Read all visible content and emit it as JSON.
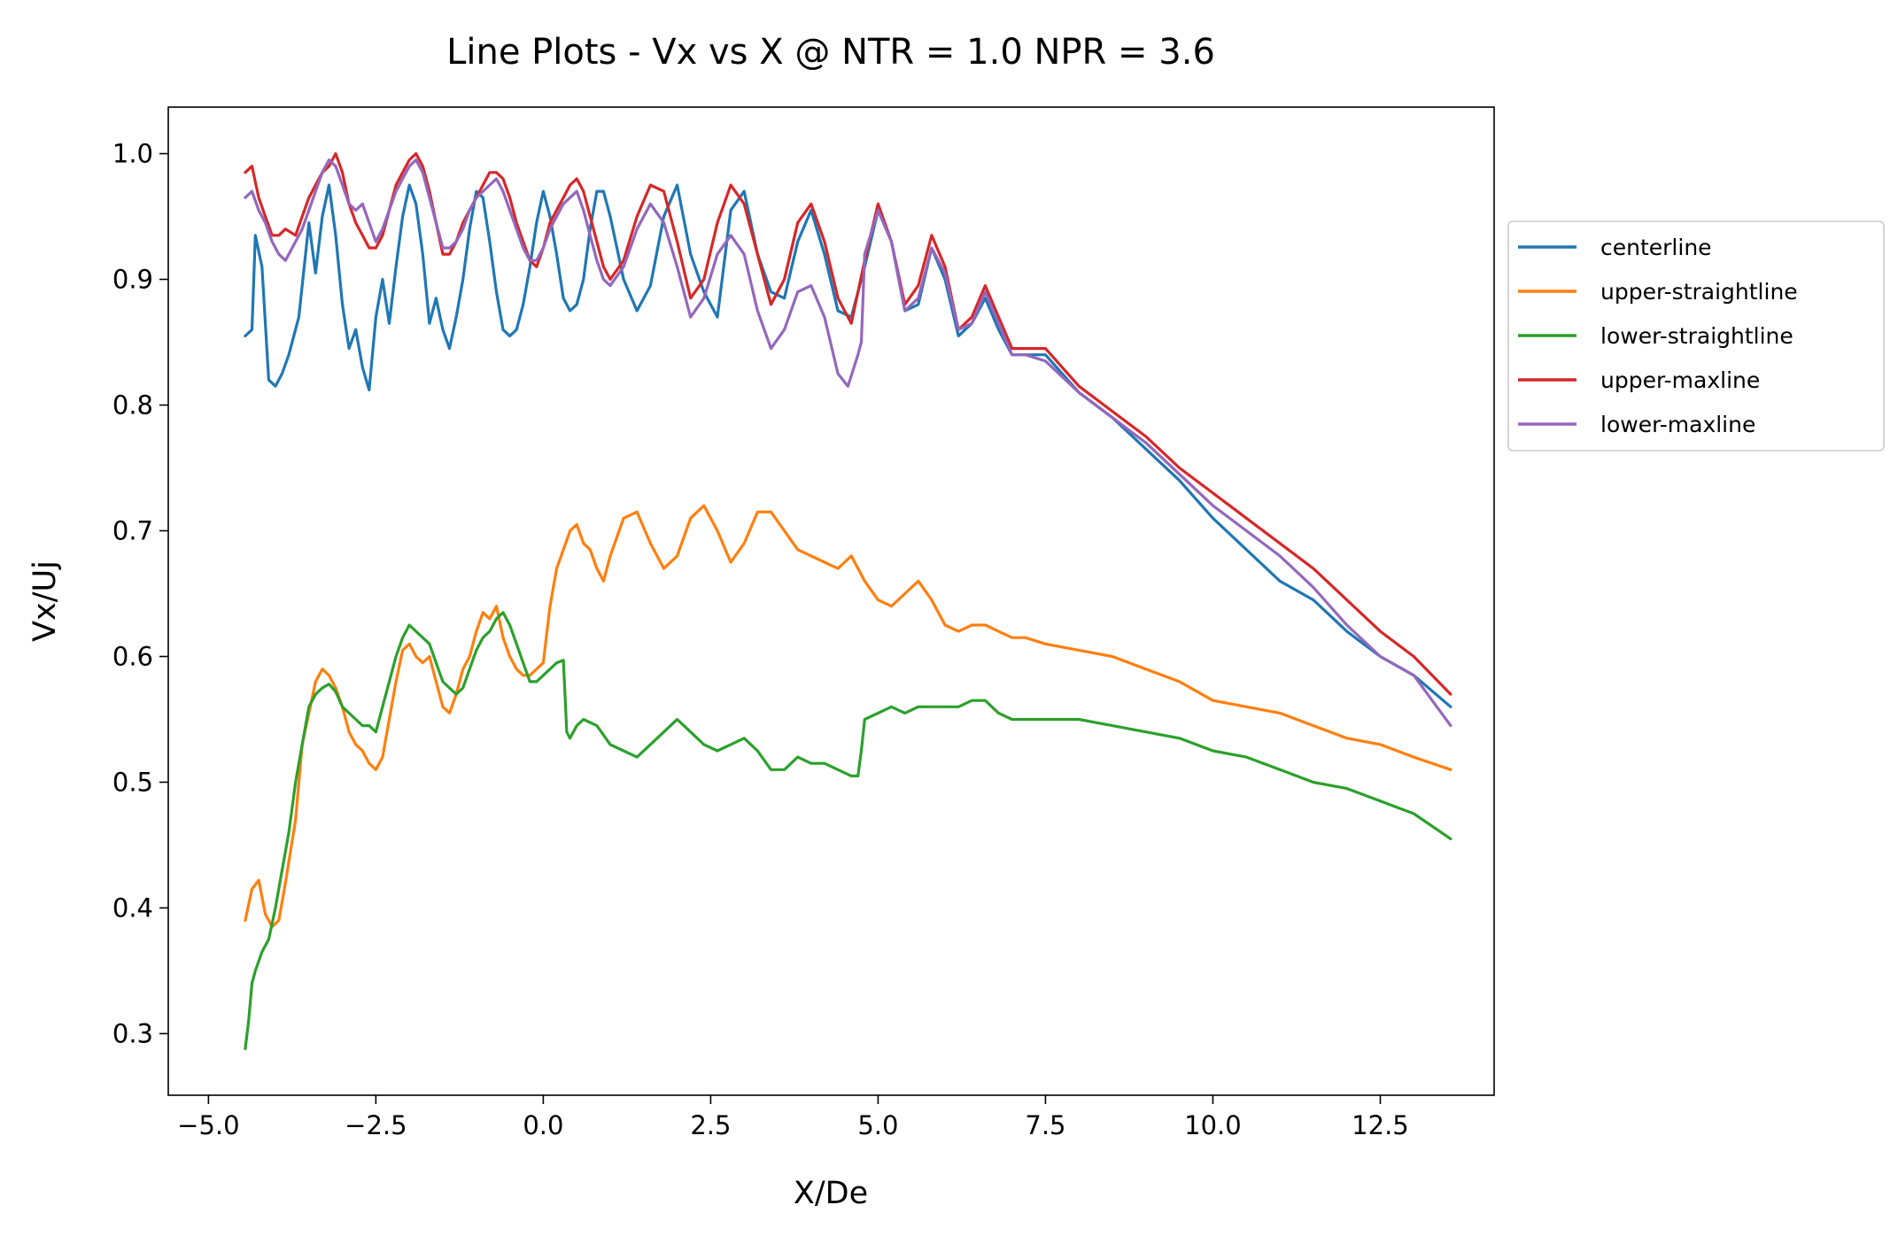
{
  "chart_data": {
    "type": "line",
    "title": "Line Plots - Vx vs X @ NTR = 1.0 NPR = 3.6",
    "xlabel": "X/De",
    "ylabel": "Vx/Uj",
    "xlim": [
      -5.6,
      14.2
    ],
    "ylim": [
      0.251,
      1.037
    ],
    "x_ticks": [
      -5.0,
      -2.5,
      0.0,
      2.5,
      5.0,
      7.5,
      10.0,
      12.5
    ],
    "x_tick_labels": [
      "−5.0",
      "−2.5",
      "0.0",
      "2.5",
      "5.0",
      "7.5",
      "10.0",
      "12.5"
    ],
    "y_ticks": [
      0.3,
      0.4,
      0.5,
      0.6,
      0.7,
      0.8,
      0.9,
      1.0
    ],
    "y_tick_labels": [
      "0.3",
      "0.4",
      "0.5",
      "0.6",
      "0.7",
      "0.8",
      "0.9",
      "1.0"
    ],
    "grid": false,
    "legend_position": "outside-right",
    "series": [
      {
        "name": "centerline",
        "color": "#1f77b4",
        "x": [
          -4.45,
          -4.35,
          -4.3,
          -4.2,
          -4.1,
          -4.0,
          -3.9,
          -3.8,
          -3.65,
          -3.5,
          -3.4,
          -3.3,
          -3.2,
          -3.1,
          -3.0,
          -2.9,
          -2.8,
          -2.7,
          -2.6,
          -2.5,
          -2.4,
          -2.3,
          -2.2,
          -2.1,
          -2.0,
          -1.9,
          -1.8,
          -1.7,
          -1.6,
          -1.5,
          -1.4,
          -1.3,
          -1.2,
          -1.1,
          -1.0,
          -0.9,
          -0.8,
          -0.7,
          -0.6,
          -0.5,
          -0.4,
          -0.3,
          -0.2,
          -0.1,
          0.0,
          0.1,
          0.2,
          0.3,
          0.4,
          0.5,
          0.6,
          0.7,
          0.8,
          0.9,
          1.0,
          1.2,
          1.4,
          1.6,
          1.8,
          2.0,
          2.2,
          2.4,
          2.6,
          2.8,
          3.0,
          3.2,
          3.4,
          3.6,
          3.8,
          4.0,
          4.2,
          4.4,
          4.6,
          4.8,
          5.0,
          5.2,
          5.4,
          5.6,
          5.8,
          6.0,
          6.2,
          6.4,
          6.6,
          6.8,
          7.0,
          7.2,
          7.5,
          8.0,
          8.5,
          9.0,
          9.5,
          10.0,
          10.5,
          11.0,
          11.5,
          12.0,
          12.5,
          13.0,
          13.55
        ],
        "y": [
          0.855,
          0.86,
          0.935,
          0.91,
          0.82,
          0.815,
          0.825,
          0.84,
          0.87,
          0.945,
          0.905,
          0.95,
          0.975,
          0.935,
          0.88,
          0.845,
          0.86,
          0.83,
          0.812,
          0.87,
          0.9,
          0.865,
          0.91,
          0.95,
          0.975,
          0.96,
          0.92,
          0.865,
          0.885,
          0.86,
          0.845,
          0.87,
          0.9,
          0.94,
          0.97,
          0.965,
          0.93,
          0.89,
          0.86,
          0.855,
          0.86,
          0.88,
          0.91,
          0.945,
          0.97,
          0.95,
          0.92,
          0.885,
          0.875,
          0.88,
          0.9,
          0.94,
          0.97,
          0.97,
          0.95,
          0.9,
          0.875,
          0.895,
          0.95,
          0.975,
          0.92,
          0.89,
          0.87,
          0.955,
          0.97,
          0.92,
          0.89,
          0.885,
          0.93,
          0.955,
          0.92,
          0.875,
          0.87,
          0.91,
          0.955,
          0.93,
          0.875,
          0.88,
          0.925,
          0.9,
          0.855,
          0.865,
          0.885,
          0.86,
          0.84,
          0.84,
          0.84,
          0.81,
          0.79,
          0.765,
          0.74,
          0.71,
          0.685,
          0.66,
          0.645,
          0.62,
          0.6,
          0.585,
          0.56
        ]
      },
      {
        "name": "upper-straightline",
        "color": "#ff7f0e",
        "x": [
          -4.45,
          -4.35,
          -4.25,
          -4.15,
          -4.05,
          -3.95,
          -3.85,
          -3.7,
          -3.6,
          -3.5,
          -3.4,
          -3.3,
          -3.2,
          -3.1,
          -3.0,
          -2.9,
          -2.8,
          -2.7,
          -2.6,
          -2.5,
          -2.4,
          -2.3,
          -2.2,
          -2.1,
          -2.0,
          -1.9,
          -1.8,
          -1.7,
          -1.6,
          -1.5,
          -1.4,
          -1.3,
          -1.2,
          -1.1,
          -1.0,
          -0.9,
          -0.8,
          -0.7,
          -0.6,
          -0.5,
          -0.4,
          -0.3,
          -0.2,
          -0.1,
          0.0,
          0.1,
          0.2,
          0.3,
          0.4,
          0.5,
          0.6,
          0.7,
          0.8,
          0.9,
          1.0,
          1.2,
          1.4,
          1.6,
          1.8,
          2.0,
          2.2,
          2.4,
          2.6,
          2.8,
          3.0,
          3.2,
          3.4,
          3.6,
          3.8,
          4.0,
          4.2,
          4.4,
          4.6,
          4.8,
          5.0,
          5.2,
          5.4,
          5.6,
          5.8,
          6.0,
          6.2,
          6.4,
          6.6,
          6.8,
          7.0,
          7.2,
          7.5,
          8.0,
          8.5,
          9.0,
          9.5,
          10.0,
          10.5,
          11.0,
          11.5,
          12.0,
          12.5,
          13.0,
          13.55
        ],
        "y": [
          0.39,
          0.415,
          0.422,
          0.395,
          0.385,
          0.39,
          0.42,
          0.47,
          0.53,
          0.555,
          0.58,
          0.59,
          0.585,
          0.575,
          0.56,
          0.54,
          0.53,
          0.525,
          0.515,
          0.51,
          0.52,
          0.55,
          0.58,
          0.605,
          0.61,
          0.6,
          0.595,
          0.6,
          0.58,
          0.56,
          0.555,
          0.57,
          0.59,
          0.6,
          0.62,
          0.635,
          0.63,
          0.64,
          0.615,
          0.6,
          0.59,
          0.585,
          0.585,
          0.59,
          0.595,
          0.64,
          0.67,
          0.685,
          0.7,
          0.705,
          0.69,
          0.685,
          0.67,
          0.66,
          0.68,
          0.71,
          0.715,
          0.69,
          0.67,
          0.68,
          0.71,
          0.72,
          0.7,
          0.675,
          0.69,
          0.715,
          0.715,
          0.7,
          0.685,
          0.68,
          0.675,
          0.67,
          0.68,
          0.66,
          0.645,
          0.64,
          0.65,
          0.66,
          0.645,
          0.625,
          0.62,
          0.625,
          0.625,
          0.62,
          0.615,
          0.615,
          0.61,
          0.605,
          0.6,
          0.59,
          0.58,
          0.565,
          0.56,
          0.555,
          0.545,
          0.535,
          0.53,
          0.52,
          0.51
        ]
      },
      {
        "name": "lower-straightline",
        "color": "#2ca02c",
        "x": [
          -4.45,
          -4.4,
          -4.35,
          -4.3,
          -4.2,
          -4.1,
          -4.0,
          -3.9,
          -3.8,
          -3.7,
          -3.6,
          -3.5,
          -3.4,
          -3.3,
          -3.2,
          -3.1,
          -3.0,
          -2.9,
          -2.8,
          -2.7,
          -2.6,
          -2.5,
          -2.4,
          -2.3,
          -2.2,
          -2.1,
          -2.0,
          -1.9,
          -1.8,
          -1.7,
          -1.6,
          -1.5,
          -1.4,
          -1.3,
          -1.2,
          -1.1,
          -1.0,
          -0.9,
          -0.8,
          -0.7,
          -0.6,
          -0.5,
          -0.4,
          -0.3,
          -0.2,
          -0.1,
          0.0,
          0.1,
          0.2,
          0.3,
          0.35,
          0.4,
          0.5,
          0.6,
          0.8,
          1.0,
          1.2,
          1.4,
          1.6,
          1.8,
          2.0,
          2.2,
          2.4,
          2.6,
          2.8,
          3.0,
          3.2,
          3.4,
          3.6,
          3.8,
          4.0,
          4.2,
          4.4,
          4.6,
          4.7,
          4.75,
          4.8,
          5.0,
          5.2,
          5.4,
          5.6,
          5.8,
          6.0,
          6.2,
          6.4,
          6.6,
          6.8,
          7.0,
          7.2,
          7.5,
          8.0,
          8.5,
          9.0,
          9.5,
          10.0,
          10.5,
          11.0,
          11.5,
          12.0,
          12.5,
          13.0,
          13.55
        ],
        "y": [
          0.288,
          0.31,
          0.34,
          0.35,
          0.365,
          0.375,
          0.4,
          0.43,
          0.46,
          0.5,
          0.53,
          0.56,
          0.57,
          0.575,
          0.578,
          0.572,
          0.56,
          0.555,
          0.55,
          0.545,
          0.545,
          0.54,
          0.56,
          0.58,
          0.6,
          0.615,
          0.625,
          0.62,
          0.615,
          0.61,
          0.595,
          0.58,
          0.575,
          0.57,
          0.575,
          0.59,
          0.605,
          0.615,
          0.62,
          0.63,
          0.635,
          0.625,
          0.61,
          0.595,
          0.58,
          0.58,
          0.585,
          0.59,
          0.595,
          0.597,
          0.54,
          0.535,
          0.545,
          0.55,
          0.545,
          0.53,
          0.525,
          0.52,
          0.53,
          0.54,
          0.55,
          0.54,
          0.53,
          0.525,
          0.53,
          0.535,
          0.525,
          0.51,
          0.51,
          0.52,
          0.515,
          0.515,
          0.51,
          0.505,
          0.505,
          0.525,
          0.55,
          0.555,
          0.56,
          0.555,
          0.56,
          0.56,
          0.56,
          0.56,
          0.565,
          0.565,
          0.555,
          0.55,
          0.55,
          0.55,
          0.55,
          0.545,
          0.54,
          0.535,
          0.525,
          0.52,
          0.51,
          0.5,
          0.495,
          0.485,
          0.475,
          0.455
        ]
      },
      {
        "name": "upper-maxline",
        "color": "#d62728",
        "x": [
          -4.45,
          -4.35,
          -4.25,
          -4.15,
          -4.05,
          -3.95,
          -3.85,
          -3.7,
          -3.6,
          -3.5,
          -3.4,
          -3.3,
          -3.2,
          -3.1,
          -3.0,
          -2.9,
          -2.8,
          -2.7,
          -2.6,
          -2.5,
          -2.4,
          -2.3,
          -2.2,
          -2.1,
          -2.0,
          -1.9,
          -1.8,
          -1.7,
          -1.6,
          -1.5,
          -1.4,
          -1.3,
          -1.2,
          -1.1,
          -1.0,
          -0.9,
          -0.8,
          -0.7,
          -0.6,
          -0.5,
          -0.4,
          -0.3,
          -0.2,
          -0.1,
          0.0,
          0.1,
          0.2,
          0.3,
          0.4,
          0.5,
          0.6,
          0.7,
          0.8,
          0.9,
          1.0,
          1.2,
          1.4,
          1.6,
          1.8,
          2.0,
          2.2,
          2.4,
          2.6,
          2.8,
          3.0,
          3.2,
          3.4,
          3.6,
          3.8,
          4.0,
          4.2,
          4.4,
          4.6,
          4.8,
          5.0,
          5.2,
          5.4,
          5.6,
          5.8,
          6.0,
          6.2,
          6.4,
          6.6,
          6.8,
          7.0,
          7.2,
          7.5,
          8.0,
          8.5,
          9.0,
          9.5,
          10.0,
          10.5,
          11.0,
          11.5,
          12.0,
          12.5,
          13.0,
          13.55
        ],
        "y": [
          0.985,
          0.99,
          0.965,
          0.95,
          0.935,
          0.935,
          0.94,
          0.935,
          0.95,
          0.965,
          0.975,
          0.985,
          0.99,
          1.0,
          0.985,
          0.96,
          0.945,
          0.935,
          0.925,
          0.925,
          0.935,
          0.955,
          0.975,
          0.985,
          0.995,
          1.0,
          0.99,
          0.97,
          0.945,
          0.92,
          0.92,
          0.93,
          0.945,
          0.955,
          0.965,
          0.975,
          0.985,
          0.985,
          0.98,
          0.965,
          0.945,
          0.93,
          0.915,
          0.91,
          0.925,
          0.945,
          0.955,
          0.965,
          0.975,
          0.98,
          0.97,
          0.95,
          0.93,
          0.91,
          0.9,
          0.915,
          0.95,
          0.975,
          0.97,
          0.93,
          0.885,
          0.9,
          0.945,
          0.975,
          0.96,
          0.92,
          0.88,
          0.9,
          0.945,
          0.96,
          0.93,
          0.885,
          0.865,
          0.915,
          0.96,
          0.93,
          0.88,
          0.895,
          0.935,
          0.91,
          0.86,
          0.87,
          0.895,
          0.87,
          0.845,
          0.845,
          0.845,
          0.815,
          0.795,
          0.775,
          0.75,
          0.73,
          0.71,
          0.69,
          0.67,
          0.645,
          0.62,
          0.6,
          0.57
        ]
      },
      {
        "name": "lower-maxline",
        "color": "#9467bd",
        "x": [
          -4.45,
          -4.35,
          -4.25,
          -4.15,
          -4.05,
          -3.95,
          -3.85,
          -3.7,
          -3.6,
          -3.5,
          -3.4,
          -3.3,
          -3.2,
          -3.1,
          -3.0,
          -2.9,
          -2.8,
          -2.7,
          -2.6,
          -2.5,
          -2.4,
          -2.3,
          -2.2,
          -2.1,
          -2.0,
          -1.9,
          -1.8,
          -1.7,
          -1.6,
          -1.5,
          -1.4,
          -1.3,
          -1.2,
          -1.1,
          -1.0,
          -0.9,
          -0.8,
          -0.7,
          -0.6,
          -0.5,
          -0.4,
          -0.3,
          -0.2,
          -0.1,
          0.0,
          0.1,
          0.2,
          0.3,
          0.4,
          0.5,
          0.6,
          0.7,
          0.8,
          0.9,
          1.0,
          1.2,
          1.4,
          1.6,
          1.8,
          2.0,
          2.2,
          2.4,
          2.6,
          2.8,
          3.0,
          3.2,
          3.4,
          3.6,
          3.8,
          4.0,
          4.2,
          4.4,
          4.55,
          4.7,
          4.75,
          4.8,
          5.0,
          5.2,
          5.4,
          5.6,
          5.8,
          6.0,
          6.2,
          6.4,
          6.6,
          6.8,
          7.0,
          7.2,
          7.5,
          8.0,
          8.5,
          9.0,
          9.5,
          10.0,
          10.5,
          11.0,
          11.5,
          12.0,
          12.5,
          13.0,
          13.55
        ],
        "y": [
          0.965,
          0.97,
          0.955,
          0.945,
          0.93,
          0.92,
          0.915,
          0.93,
          0.94,
          0.955,
          0.97,
          0.985,
          0.995,
          0.99,
          0.975,
          0.96,
          0.955,
          0.96,
          0.945,
          0.93,
          0.94,
          0.955,
          0.97,
          0.98,
          0.99,
          0.995,
          0.985,
          0.965,
          0.945,
          0.925,
          0.925,
          0.93,
          0.94,
          0.955,
          0.965,
          0.97,
          0.975,
          0.98,
          0.97,
          0.955,
          0.94,
          0.925,
          0.915,
          0.915,
          0.925,
          0.94,
          0.95,
          0.96,
          0.965,
          0.97,
          0.955,
          0.935,
          0.915,
          0.9,
          0.895,
          0.91,
          0.94,
          0.96,
          0.945,
          0.91,
          0.87,
          0.885,
          0.92,
          0.935,
          0.92,
          0.875,
          0.845,
          0.86,
          0.89,
          0.895,
          0.87,
          0.825,
          0.815,
          0.84,
          0.85,
          0.92,
          0.955,
          0.93,
          0.875,
          0.885,
          0.925,
          0.905,
          0.86,
          0.865,
          0.89,
          0.865,
          0.84,
          0.84,
          0.835,
          0.81,
          0.79,
          0.77,
          0.745,
          0.72,
          0.7,
          0.68,
          0.655,
          0.625,
          0.6,
          0.585,
          0.545
        ]
      }
    ]
  }
}
